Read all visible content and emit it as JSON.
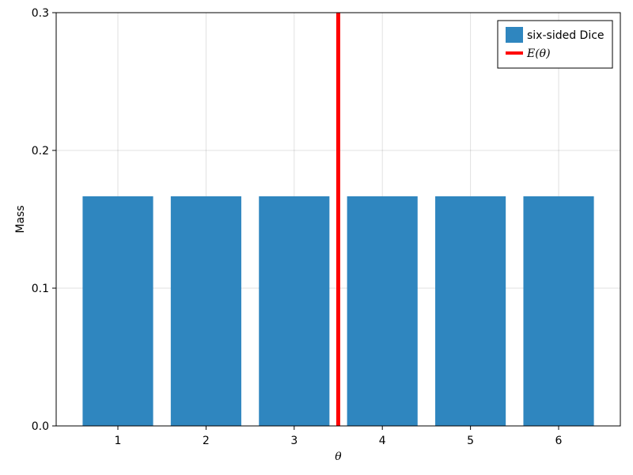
{
  "chart_data": {
    "type": "bar",
    "categories": [
      "1",
      "2",
      "3",
      "4",
      "5",
      "6"
    ],
    "x": [
      1,
      2,
      3,
      4,
      5,
      6
    ],
    "series": [
      {
        "name": "six-sided Dice",
        "values": [
          0.1667,
          0.1667,
          0.1667,
          0.1667,
          0.1667,
          0.1667
        ],
        "color": "#2f86bf"
      }
    ],
    "vline": {
      "name": "E(θ)",
      "x": 3.5,
      "color": "#ff0000"
    },
    "xlabel": "θ",
    "ylabel": "Mass",
    "xlim": [
      0.3,
      6.7
    ],
    "ylim": [
      0,
      0.3
    ],
    "yticks": [
      0.0,
      0.1,
      0.2,
      0.3
    ],
    "ytick_labels": [
      "0.0",
      "0.1",
      "0.2",
      "0.3"
    ],
    "grid": true,
    "legend_position": "top-right"
  }
}
